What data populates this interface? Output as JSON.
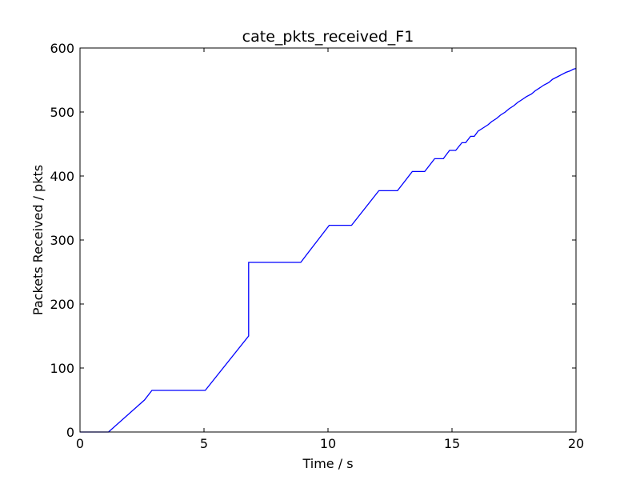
{
  "chart_data": {
    "type": "line",
    "title": "cate_pkts_received_F1",
    "xlabel": "Time / s",
    "ylabel": "Packets Received / pkts",
    "xlim": [
      0,
      20
    ],
    "ylim": [
      0,
      600
    ],
    "xticks": [
      0,
      5,
      10,
      15,
      20
    ],
    "yticks": [
      0,
      100,
      200,
      300,
      400,
      500,
      600
    ],
    "grid": false,
    "series": [
      {
        "color": "#0000ff",
        "x": [
          0,
          1.15,
          2.6,
          2.9,
          5.05,
          6.8,
          6.8,
          8.9,
          10.05,
          10.95,
          12.05,
          12.8,
          13.4,
          13.9,
          14.3,
          14.65,
          14.9,
          15.15,
          15.4,
          15.55,
          15.75,
          15.9,
          16.05,
          16.25,
          16.45,
          16.6,
          16.8,
          16.95,
          17.15,
          17.3,
          17.5,
          17.65,
          17.85,
          18.0,
          18.2,
          18.35,
          18.55,
          18.7,
          18.9,
          19.05,
          19.25,
          19.4,
          19.6,
          19.75,
          19.9,
          20.0
        ],
        "y": [
          0,
          0,
          50,
          65,
          65,
          150,
          265,
          265,
          323,
          323,
          377,
          377,
          407,
          407,
          427,
          427,
          440,
          440,
          452,
          452,
          462,
          462,
          470,
          475,
          480,
          485,
          490,
          495,
          500,
          505,
          510,
          515,
          520,
          524,
          528,
          533,
          538,
          542,
          546,
          551,
          555,
          558,
          562,
          564,
          567,
          568
        ]
      }
    ]
  }
}
